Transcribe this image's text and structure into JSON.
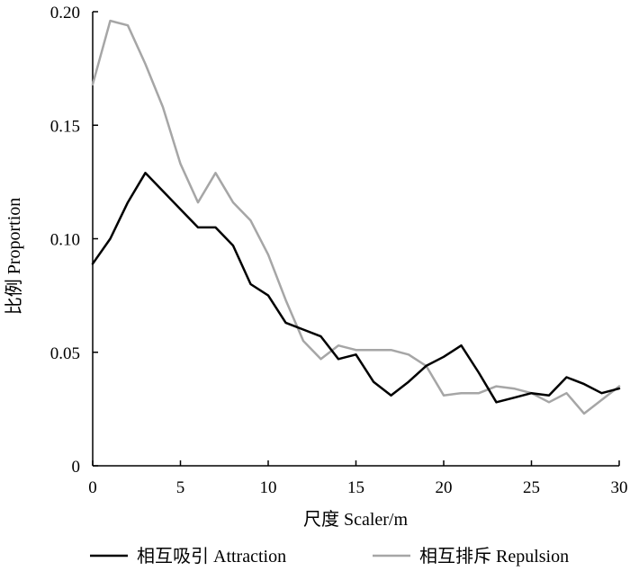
{
  "chart_data": {
    "type": "line",
    "title": "",
    "xlabel": "尺度  Scaler/m",
    "ylabel": "比例  Proportion",
    "xlim": [
      0,
      30
    ],
    "ylim": [
      0,
      0.2
    ],
    "xticks": [
      0,
      5,
      10,
      15,
      20,
      25,
      30
    ],
    "xtick_labels": [
      "0",
      "5",
      "10",
      "15",
      "20",
      "25",
      "30"
    ],
    "yticks": [
      0,
      0.05,
      0.1,
      0.15,
      0.2
    ],
    "ytick_labels": [
      "0",
      "0.05",
      "0.10",
      "0.15",
      "0.20"
    ],
    "grid": false,
    "legend_position": "bottom",
    "x": [
      0,
      1,
      2,
      3,
      4,
      5,
      6,
      7,
      8,
      9,
      10,
      11,
      12,
      13,
      14,
      15,
      16,
      17,
      18,
      19,
      20,
      21,
      22,
      23,
      24,
      25,
      26,
      27,
      28,
      29,
      30
    ],
    "series": [
      {
        "name": "相互吸引  Attraction",
        "color": "#000000",
        "values": [
          0.089,
          0.1,
          0.116,
          0.129,
          0.121,
          0.113,
          0.105,
          0.105,
          0.097,
          0.08,
          0.075,
          0.063,
          0.06,
          0.057,
          0.047,
          0.049,
          0.037,
          0.031,
          0.037,
          0.044,
          0.048,
          0.053,
          0.041,
          0.028,
          0.03,
          0.032,
          0.031,
          0.039,
          0.036,
          0.032,
          0.034
        ]
      },
      {
        "name": "相互排斥  Repulsion",
        "color": "#a6a6a6",
        "values": [
          0.168,
          0.196,
          0.194,
          0.177,
          0.158,
          0.133,
          0.116,
          0.129,
          0.116,
          0.108,
          0.093,
          0.073,
          0.055,
          0.047,
          0.053,
          0.051,
          0.051,
          0.051,
          0.049,
          0.044,
          0.031,
          0.032,
          0.032,
          0.035,
          0.034,
          0.032,
          0.028,
          0.032,
          0.023,
          0.029,
          0.035
        ]
      }
    ]
  }
}
